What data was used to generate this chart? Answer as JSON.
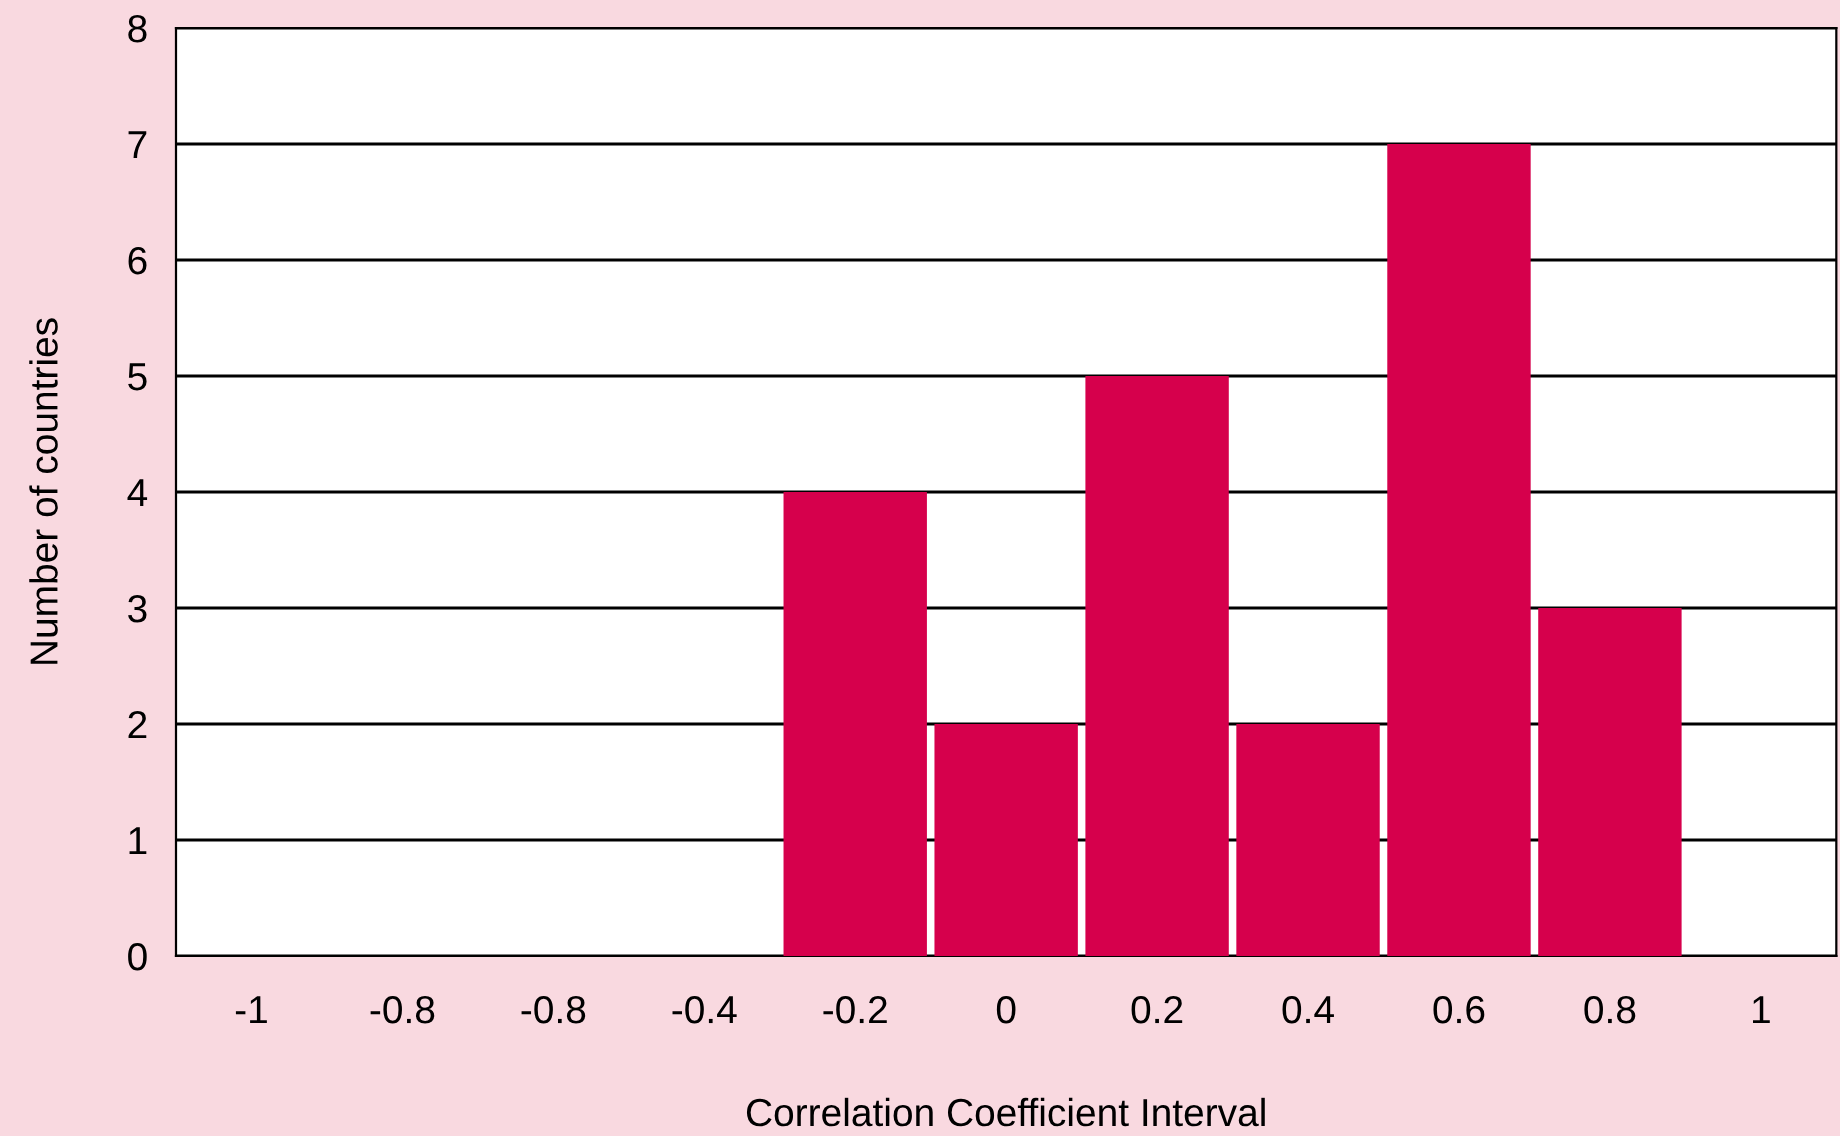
{
  "chart_data": {
    "type": "bar",
    "xlabel": "Correlation Coefficient Interval",
    "ylabel": "Number of countries",
    "categories": [
      "-1",
      "-0.8",
      "-0.8",
      "-0.4",
      "-0.2",
      "0",
      "0.2",
      "0.4",
      "0.6",
      "0.8",
      "1"
    ],
    "values": [
      0,
      0,
      0,
      0,
      4,
      2,
      5,
      2,
      7,
      3,
      0
    ],
    "color": "#d6004c",
    "ylim": [
      0,
      8
    ],
    "yticks": [
      0,
      1,
      2,
      3,
      4,
      5,
      6,
      7,
      8
    ],
    "grid": "y"
  }
}
